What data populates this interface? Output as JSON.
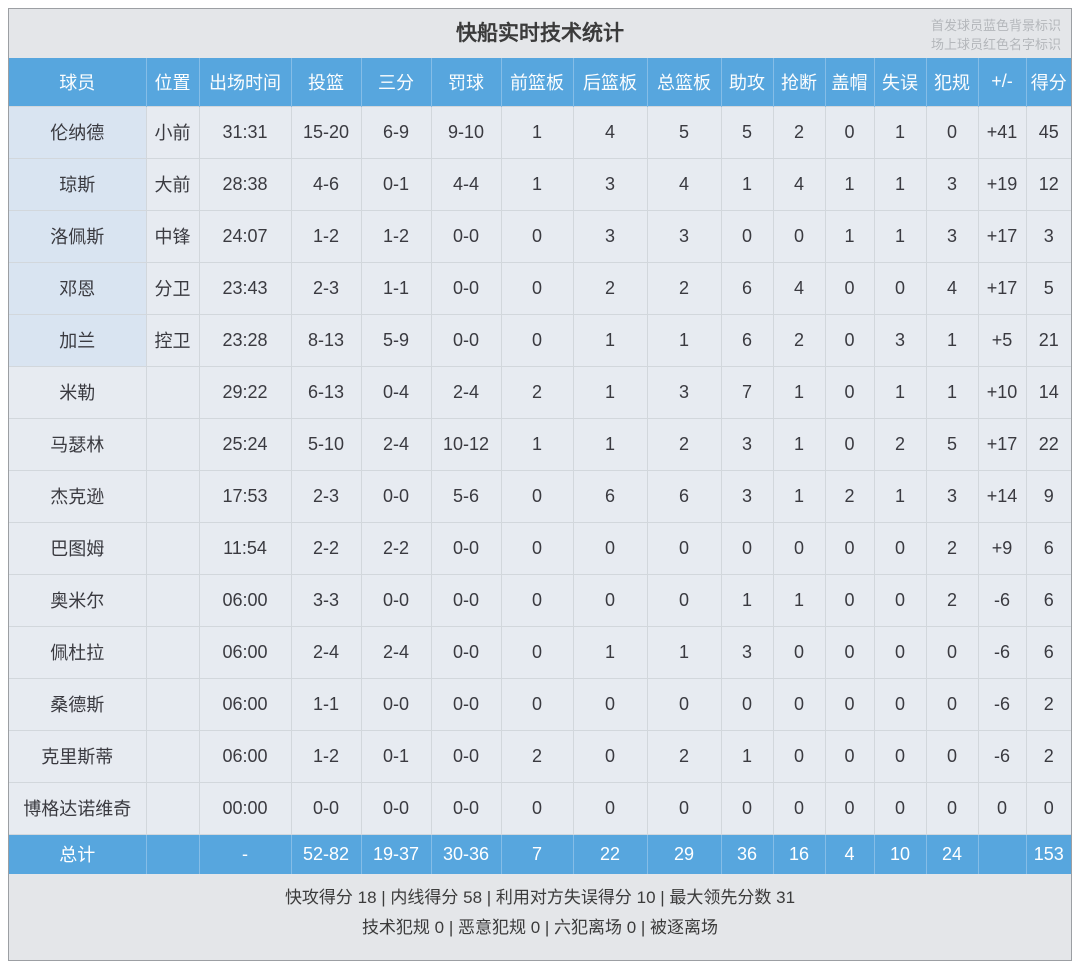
{
  "title": "快船实时技术统计",
  "legend": {
    "line1": "首发球员蓝色背景标识",
    "line2": "场上球员红色名字标识"
  },
  "table": {
    "headers": [
      "球员",
      "位置",
      "出场时间",
      "投篮",
      "三分",
      "罚球",
      "前篮板",
      "后篮板",
      "总篮板",
      "助攻",
      "抢断",
      "盖帽",
      "失误",
      "犯规",
      "+/-",
      "得分"
    ],
    "rows": [
      {
        "starter": true,
        "cells": [
          "伦纳德",
          "小前",
          "31:31",
          "15-20",
          "6-9",
          "9-10",
          "1",
          "4",
          "5",
          "5",
          "2",
          "0",
          "1",
          "0",
          "+41",
          "45"
        ]
      },
      {
        "starter": true,
        "cells": [
          "琼斯",
          "大前",
          "28:38",
          "4-6",
          "0-1",
          "4-4",
          "1",
          "3",
          "4",
          "1",
          "4",
          "1",
          "1",
          "3",
          "+19",
          "12"
        ]
      },
      {
        "starter": true,
        "cells": [
          "洛佩斯",
          "中锋",
          "24:07",
          "1-2",
          "1-2",
          "0-0",
          "0",
          "3",
          "3",
          "0",
          "0",
          "1",
          "1",
          "3",
          "+17",
          "3"
        ]
      },
      {
        "starter": true,
        "cells": [
          "邓恩",
          "分卫",
          "23:43",
          "2-3",
          "1-1",
          "0-0",
          "0",
          "2",
          "2",
          "6",
          "4",
          "0",
          "0",
          "4",
          "+17",
          "5"
        ]
      },
      {
        "starter": true,
        "cells": [
          "加兰",
          "控卫",
          "23:28",
          "8-13",
          "5-9",
          "0-0",
          "0",
          "1",
          "1",
          "6",
          "2",
          "0",
          "3",
          "1",
          "+5",
          "21"
        ]
      },
      {
        "starter": false,
        "cells": [
          "米勒",
          "",
          "29:22",
          "6-13",
          "0-4",
          "2-4",
          "2",
          "1",
          "3",
          "7",
          "1",
          "0",
          "1",
          "1",
          "+10",
          "14"
        ]
      },
      {
        "starter": false,
        "cells": [
          "马瑟林",
          "",
          "25:24",
          "5-10",
          "2-4",
          "10-12",
          "1",
          "1",
          "2",
          "3",
          "1",
          "0",
          "2",
          "5",
          "+17",
          "22"
        ]
      },
      {
        "starter": false,
        "cells": [
          "杰克逊",
          "",
          "17:53",
          "2-3",
          "0-0",
          "5-6",
          "0",
          "6",
          "6",
          "3",
          "1",
          "2",
          "1",
          "3",
          "+14",
          "9"
        ]
      },
      {
        "starter": false,
        "cells": [
          "巴图姆",
          "",
          "11:54",
          "2-2",
          "2-2",
          "0-0",
          "0",
          "0",
          "0",
          "0",
          "0",
          "0",
          "0",
          "2",
          "+9",
          "6"
        ]
      },
      {
        "starter": false,
        "cells": [
          "奥米尔",
          "",
          "06:00",
          "3-3",
          "0-0",
          "0-0",
          "0",
          "0",
          "0",
          "1",
          "1",
          "0",
          "0",
          "2",
          "-6",
          "6"
        ]
      },
      {
        "starter": false,
        "cells": [
          "佩杜拉",
          "",
          "06:00",
          "2-4",
          "2-4",
          "0-0",
          "0",
          "1",
          "1",
          "3",
          "0",
          "0",
          "0",
          "0",
          "-6",
          "6"
        ]
      },
      {
        "starter": false,
        "cells": [
          "桑德斯",
          "",
          "06:00",
          "1-1",
          "0-0",
          "0-0",
          "0",
          "0",
          "0",
          "0",
          "0",
          "0",
          "0",
          "0",
          "-6",
          "2"
        ]
      },
      {
        "starter": false,
        "cells": [
          "克里斯蒂",
          "",
          "06:00",
          "1-2",
          "0-1",
          "0-0",
          "2",
          "0",
          "2",
          "1",
          "0",
          "0",
          "0",
          "0",
          "-6",
          "2"
        ]
      },
      {
        "starter": false,
        "cells": [
          "博格达诺维奇",
          "",
          "00:00",
          "0-0",
          "0-0",
          "0-0",
          "0",
          "0",
          "0",
          "0",
          "0",
          "0",
          "0",
          "0",
          "0",
          "0"
        ]
      }
    ],
    "total": {
      "cells": [
        "总计",
        "",
        "-",
        "52-82",
        "19-37",
        "30-36",
        "7",
        "22",
        "29",
        "36",
        "16",
        "4",
        "10",
        "24",
        "",
        "153"
      ]
    }
  },
  "footer": {
    "line1": "快攻得分 18 | 内线得分 58 | 利用对方失误得分 10 | 最大领先分数 31",
    "line2": "技术犯规 0 | 恶意犯规 0 | 六犯离场 0 | 被逐离场"
  },
  "colors": {
    "header_blue": "#57a6de",
    "starter_name_bg": "#d9e4f1",
    "cell_bg": "#e7ebf1",
    "board_bg": "#e4e6e9",
    "total_row_bg": "#57a6de"
  }
}
